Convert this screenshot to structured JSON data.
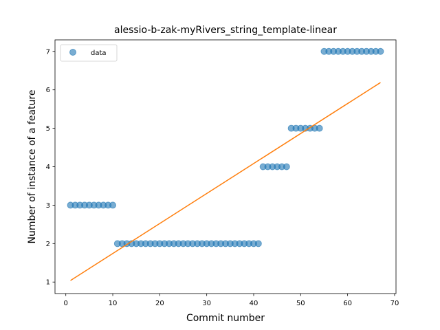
{
  "chart_data": {
    "type": "scatter",
    "title": "alessio-b-zak-myRivers_string_template-linear",
    "xlabel": "Commit number",
    "ylabel": "Number of instance of a feature",
    "xlim": [
      -2.3,
      70.3
    ],
    "ylim": [
      0.7,
      7.3
    ],
    "xticks": [
      0,
      10,
      20,
      30,
      40,
      50,
      60,
      70
    ],
    "yticks": [
      1,
      2,
      3,
      4,
      5,
      6,
      7
    ],
    "grid": false,
    "legend": {
      "placement": "top-left",
      "entries": [
        "data"
      ]
    },
    "series": [
      {
        "name": "data",
        "kind": "scatter",
        "color": "#1f77b4",
        "x": [
          1,
          2,
          3,
          4,
          5,
          6,
          7,
          8,
          9,
          10,
          11,
          12,
          13,
          14,
          15,
          16,
          17,
          18,
          19,
          20,
          21,
          22,
          23,
          24,
          25,
          26,
          27,
          28,
          29,
          30,
          31,
          32,
          33,
          34,
          35,
          36,
          37,
          38,
          39,
          40,
          41,
          42,
          43,
          44,
          45,
          46,
          47,
          48,
          49,
          50,
          51,
          52,
          53,
          54,
          55,
          56,
          57,
          58,
          59,
          60,
          61,
          62,
          63,
          64,
          65,
          66,
          67
        ],
        "y": [
          3,
          3,
          3,
          3,
          3,
          3,
          3,
          3,
          3,
          3,
          2,
          2,
          2,
          2,
          2,
          2,
          2,
          2,
          2,
          2,
          2,
          2,
          2,
          2,
          2,
          2,
          2,
          2,
          2,
          2,
          2,
          2,
          2,
          2,
          2,
          2,
          2,
          2,
          2,
          2,
          2,
          4,
          4,
          4,
          4,
          4,
          4,
          5,
          5,
          5,
          5,
          5,
          5,
          5,
          7,
          7,
          7,
          7,
          7,
          7,
          7,
          7,
          7,
          7,
          7,
          7,
          7
        ]
      },
      {
        "kind": "line",
        "color": "#ff7f0e",
        "x": [
          1,
          67
        ],
        "y": [
          1.04,
          6.19
        ]
      }
    ]
  }
}
